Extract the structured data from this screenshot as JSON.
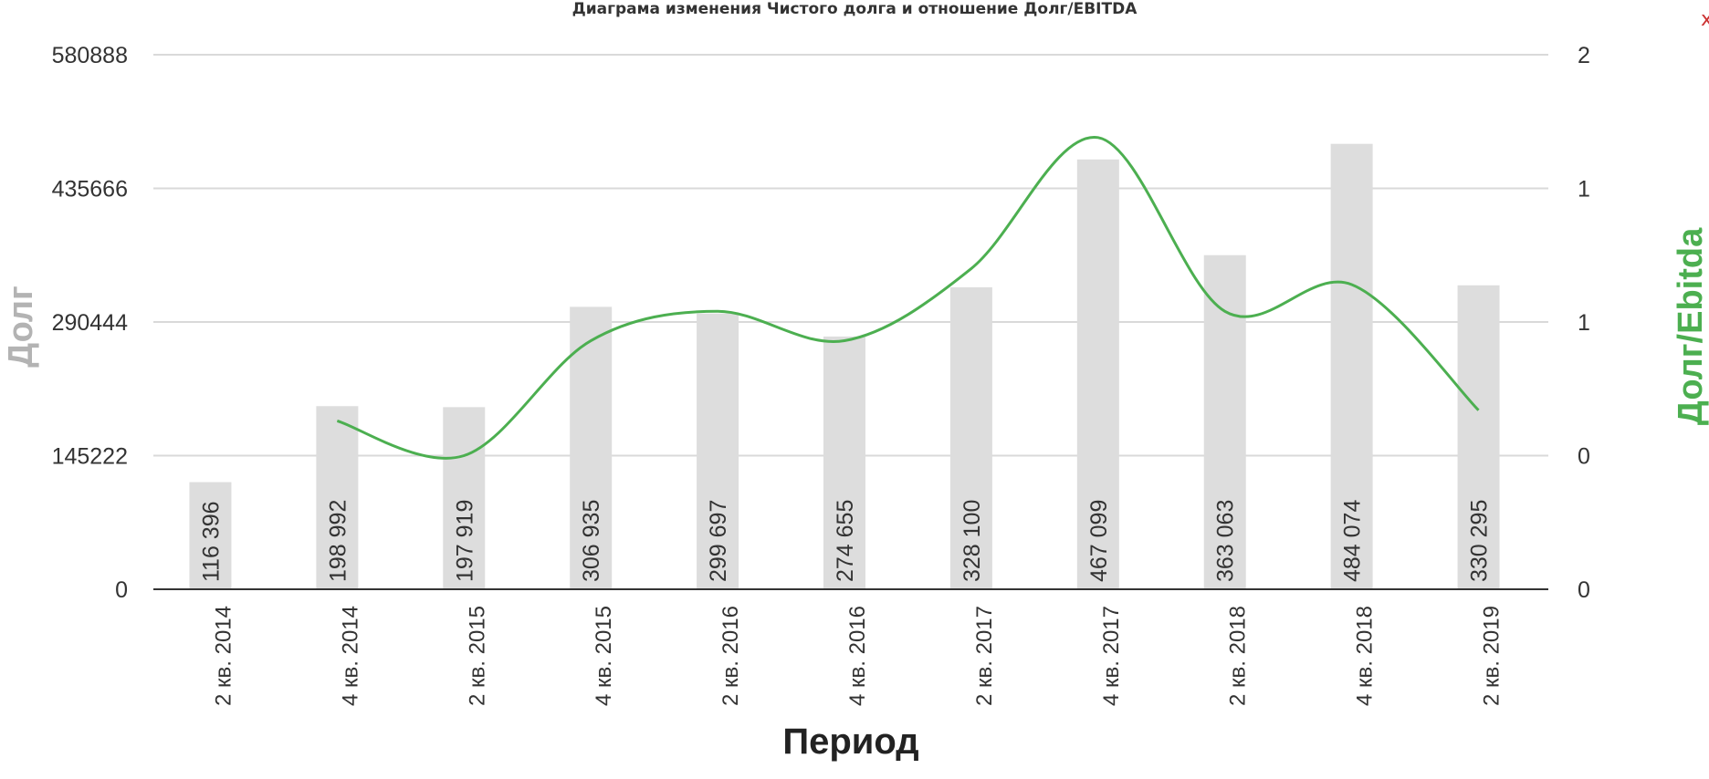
{
  "chart_data": {
    "type": "bar",
    "title": "Диаграма изменения Чистого долга и отношение Долг/EBITDA",
    "xlabel": "Период",
    "ylabel": "Долг",
    "ylabel_right": "Долг/Ebitda",
    "categories": [
      "2 кв. 2014",
      "4 кв. 2014",
      "2 кв. 2015",
      "4 кв. 2015",
      "2 кв. 2016",
      "4 кв. 2016",
      "2 кв. 2017",
      "4 кв. 2017",
      "2 кв. 2018",
      "4 кв. 2018",
      "2 кв. 2019"
    ],
    "y_ticks": [
      "0",
      "145222",
      "290444",
      "435666",
      "580888"
    ],
    "y2_ticks": [
      "0",
      "0",
      "1",
      "1",
      "2"
    ],
    "ylim": [
      0,
      580888
    ],
    "y2lim": [
      0,
      2
    ],
    "grid": true,
    "series": [
      {
        "type": "bar",
        "values": [
          116396,
          198992,
          197919,
          306935,
          299697,
          274655,
          328100,
          467099,
          363063,
          484074,
          330295
        ],
        "labels": [
          "116 396",
          "198 992",
          "197 919",
          "306 935",
          "299 697",
          "274 655",
          "328 100",
          "467 099",
          "363 063",
          "484 074",
          "330 295"
        ],
        "color": "#dddddd"
      },
      {
        "type": "line",
        "axis": "right",
        "values": [
          null,
          0.63,
          0.5,
          0.93,
          1.04,
          0.93,
          1.2,
          1.69,
          1.04,
          1.14,
          0.67
        ],
        "color": "#4caf50"
      }
    ],
    "colors": {
      "left_axis": "#b3b3b3",
      "right_axis": "#4caf50",
      "grid": "#d9d9d9",
      "baseline": "#333333"
    }
  },
  "close_icon": "close-icon",
  "close_glyph": "x"
}
